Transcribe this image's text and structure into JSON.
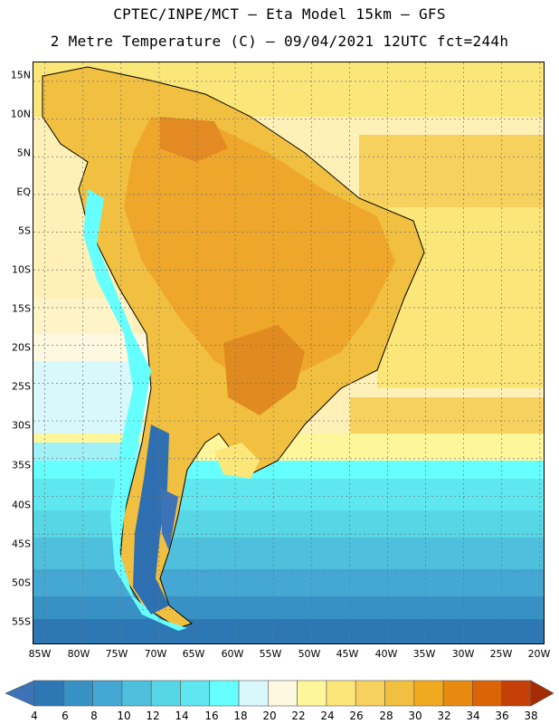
{
  "header": {
    "line1": "CPTEC/INPE/MCT –  Eta Model 15km – GFS",
    "line2": "2 Metre Temperature (C) – 09/04/2021 12UTC fct=244h"
  },
  "map": {
    "lat_labels": [
      "15N",
      "10N",
      "5N",
      "EQ",
      "5S",
      "10S",
      "15S",
      "20S",
      "25S",
      "30S",
      "35S",
      "40S",
      "45S",
      "50S",
      "55S"
    ],
    "lon_labels": [
      "85W",
      "80W",
      "75W",
      "70W",
      "65W",
      "60W",
      "55W",
      "50W",
      "45W",
      "40W",
      "35W",
      "30W",
      "25W",
      "20W"
    ],
    "lat_extent": [
      17.5,
      -59.5
    ],
    "lon_extent": [
      -86.5,
      -19.5
    ]
  },
  "legend": {
    "labels": [
      "4",
      "6",
      "8",
      "10",
      "12",
      "14",
      "16",
      "18",
      "20",
      "22",
      "24",
      "26",
      "28",
      "30",
      "32",
      "34",
      "36",
      "38"
    ],
    "colors": [
      "#3b72b8",
      "#2d78b4",
      "#3791c4",
      "#45a7d3",
      "#4ebfdc",
      "#57d6e5",
      "#5fe7ef",
      "#66ffff",
      "#d8f8fc",
      "#fff8e0",
      "#fff59a",
      "#fbe67a",
      "#f6d15e",
      "#f1c040",
      "#f0aa20",
      "#e88a10",
      "#db6308",
      "#c44006",
      "#a42b04"
    ]
  }
}
